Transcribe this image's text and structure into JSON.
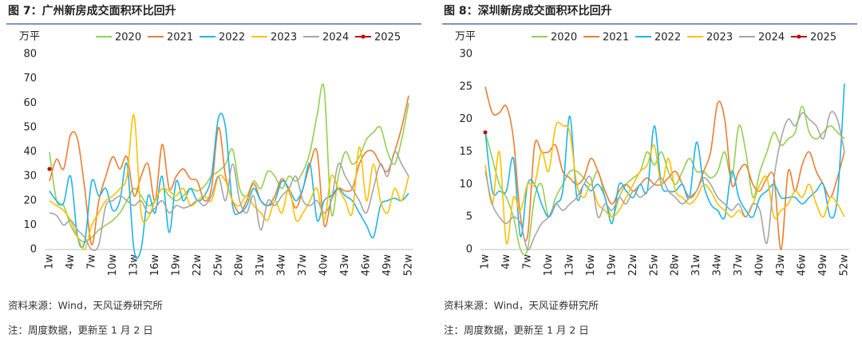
{
  "chart_data": [
    {
      "type": "line",
      "title": "图 7：广州新房成交面积环比回升",
      "y_label": "万平",
      "source": "资料来源：Wind，天风证券研究所",
      "note": "注：周度数据，更新至 1 月 2 日",
      "legend": "top",
      "grid": false,
      "categories": [
        "1w",
        null,
        null,
        "4w",
        null,
        null,
        "7w",
        null,
        null,
        "10w",
        null,
        null,
        "13w",
        null,
        null,
        "16w",
        null,
        null,
        "19w",
        null,
        null,
        "22w",
        null,
        null,
        "25w",
        null,
        null,
        "28w",
        null,
        null,
        "31w",
        null,
        null,
        "34w",
        null,
        null,
        "37w",
        null,
        null,
        "40w",
        null,
        null,
        "43w",
        null,
        null,
        "46w",
        null,
        null,
        "49w",
        null,
        null,
        "52w"
      ],
      "ylim": [
        0,
        80
      ],
      "yticks": [
        0,
        10,
        20,
        30,
        40,
        50,
        60,
        70,
        80
      ],
      "series": [
        {
          "name": "2020",
          "color": "#92d050",
          "values": [
            40,
            20,
            18,
            10,
            5,
            3,
            5,
            8,
            10,
            12,
            15,
            20,
            25,
            22,
            18,
            20,
            25,
            22,
            20,
            22,
            25,
            24,
            26,
            30,
            32,
            35,
            41,
            25,
            22,
            28,
            25,
            32,
            30,
            25,
            30,
            28,
            32,
            40,
            55,
            66,
            15,
            30,
            40,
            35,
            38,
            45,
            48,
            50,
            40,
            35,
            45,
            60
          ]
        },
        {
          "name": "2021",
          "color": "#ed7d31",
          "values": [
            28,
            37,
            33,
            47,
            45,
            25,
            2,
            20,
            30,
            38,
            33,
            38,
            22,
            30,
            35,
            20,
            43,
            25,
            30,
            33,
            29,
            28,
            20,
            25,
            50,
            30,
            20,
            15,
            20,
            27,
            20,
            18,
            22,
            29,
            24,
            17,
            25,
            35,
            40,
            10,
            20,
            25,
            24,
            25,
            35,
            40,
            40,
            35,
            32,
            40,
            50,
            63
          ]
        },
        {
          "name": "2022",
          "color": "#1fb5e6",
          "values": [
            24,
            20,
            19,
            30,
            5,
            3,
            28,
            22,
            25,
            16,
            20,
            35,
            0,
            0,
            22,
            15,
            30,
            7,
            28,
            20,
            25,
            20,
            22,
            30,
            54,
            50,
            18,
            15,
            18,
            25,
            20,
            18,
            20,
            28,
            25,
            20,
            25,
            35,
            12,
            20,
            22,
            25,
            22,
            20,
            15,
            10,
            5,
            18,
            20,
            21,
            20,
            23
          ]
        },
        {
          "name": "2023",
          "color": "#ffc000",
          "values": [
            20,
            18,
            16,
            12,
            5,
            0,
            10,
            15,
            20,
            22,
            25,
            30,
            55,
            15,
            13,
            20,
            25,
            24,
            22,
            25,
            18,
            20,
            22,
            20,
            30,
            28,
            20,
            18,
            22,
            18,
            15,
            12,
            20,
            15,
            25,
            12,
            15,
            20,
            25,
            12,
            30,
            25,
            20,
            15,
            42,
            20,
            35,
            20,
            15,
            25,
            20,
            30
          ]
        },
        {
          "name": "2024",
          "color": "#a5a5a5",
          "values": [
            15,
            14,
            10,
            12,
            8,
            5,
            0,
            2,
            18,
            20,
            22,
            20,
            18,
            20,
            15,
            17,
            20,
            15,
            18,
            17,
            18,
            20,
            18,
            22,
            30,
            20,
            35,
            20,
            15,
            22,
            8,
            20,
            18,
            22,
            25,
            30,
            20,
            18,
            20,
            15,
            20,
            35,
            30,
            25,
            20,
            15,
            25,
            35,
            30,
            40,
            35,
            30
          ]
        },
        {
          "name": "2025",
          "color": "#c00000",
          "values": [
            33,
            null,
            null,
            null,
            null,
            null,
            null,
            null,
            null,
            null,
            null,
            null,
            null,
            null,
            null,
            null,
            null,
            null,
            null,
            null,
            null,
            null,
            null,
            null,
            null,
            null,
            null,
            null,
            null,
            null,
            null,
            null,
            null,
            null,
            null,
            null,
            null,
            null,
            null,
            null,
            null,
            null,
            null,
            null,
            null,
            null,
            null,
            null,
            null,
            null,
            null,
            null
          ]
        }
      ]
    },
    {
      "type": "line",
      "title": "图 8：深圳新房成交面积环比回升",
      "y_label": "万平",
      "source": "资料来源：Wind，天风证券研究所",
      "note": "注：周度数据，更新至 1 月 2 日",
      "legend": "top",
      "grid": false,
      "categories": [
        "1w",
        null,
        null,
        "4w",
        null,
        null,
        "7w",
        null,
        null,
        "10w",
        null,
        null,
        "13w",
        null,
        null,
        "16w",
        null,
        null,
        "19w",
        null,
        null,
        "22w",
        null,
        null,
        "25w",
        null,
        null,
        "28w",
        null,
        null,
        "31w",
        null,
        null,
        "34w",
        null,
        null,
        "37w",
        null,
        null,
        "40w",
        null,
        null,
        "43w",
        null,
        null,
        "46w",
        null,
        null,
        "49w",
        null,
        null,
        "52w"
      ],
      "ylim": [
        0,
        30
      ],
      "yticks": [
        0,
        5,
        10,
        15,
        20,
        25,
        30
      ],
      "series": [
        {
          "name": "2020",
          "color": "#92d050",
          "values": [
            18,
            14,
            10,
            8,
            5,
            0,
            0,
            8,
            10,
            5,
            8,
            10,
            12,
            12,
            11,
            10,
            12,
            8,
            5,
            8,
            10,
            11,
            12,
            15,
            13,
            15,
            12,
            10,
            12,
            14,
            12,
            12,
            11,
            12,
            15,
            11,
            19,
            15,
            8,
            12,
            15,
            18,
            16,
            17,
            18,
            22,
            18,
            17,
            18,
            19,
            18,
            17
          ]
        },
        {
          "name": "2021",
          "color": "#ed7d31",
          "values": [
            25,
            21,
            21,
            22,
            17,
            5,
            2,
            16,
            15,
            15,
            16,
            12,
            11,
            10,
            11,
            14,
            12,
            9,
            7,
            9,
            10,
            9,
            10,
            11,
            10,
            10,
            11,
            12,
            10,
            8,
            9,
            12,
            15,
            22.5,
            20,
            10,
            12,
            13,
            10,
            9,
            11,
            11,
            0,
            12,
            9,
            13,
            15,
            12,
            10,
            8,
            11,
            15
          ]
        },
        {
          "name": "2022",
          "color": "#1fb5e6",
          "values": [
            18,
            9,
            9,
            9,
            14,
            2,
            10,
            10,
            7,
            5,
            7,
            9,
            20.5,
            8,
            10,
            9,
            10,
            8,
            4,
            10,
            9,
            8,
            10,
            9,
            19,
            10,
            9,
            9,
            10,
            8,
            16.5,
            10,
            7,
            6,
            5,
            12,
            8,
            6,
            5,
            8,
            9,
            10,
            8,
            8,
            8,
            7,
            8,
            9,
            10,
            5,
            8,
            25.5
          ]
        },
        {
          "name": "2023",
          "color": "#ffc000",
          "values": [
            13,
            7,
            15,
            1,
            8,
            6,
            10,
            10,
            15,
            12,
            19,
            19,
            18,
            10,
            8,
            10,
            7,
            6,
            5,
            6,
            8,
            10,
            12,
            13,
            16,
            10,
            14,
            9,
            8,
            7,
            8,
            10,
            9,
            7,
            6,
            5,
            6,
            5,
            7,
            10,
            11,
            5,
            6,
            7,
            9,
            8,
            10,
            7,
            5,
            8,
            7,
            5
          ]
        },
        {
          "name": "2024",
          "color": "#a5a5a5",
          "values": [
            12,
            7,
            5,
            4,
            5,
            4,
            0,
            2,
            4,
            5,
            7,
            6,
            7,
            8,
            10,
            11,
            5,
            7,
            6,
            8,
            7,
            9,
            8,
            9,
            10,
            11,
            9,
            8,
            7,
            8,
            9,
            11,
            10,
            8,
            7,
            6,
            7,
            5,
            7,
            6,
            1,
            11,
            17,
            20,
            19,
            21,
            20,
            19,
            17,
            21,
            20,
            15
          ]
        },
        {
          "name": "2025",
          "color": "#c00000",
          "values": [
            18,
            null,
            null,
            null,
            null,
            null,
            null,
            null,
            null,
            null,
            null,
            null,
            null,
            null,
            null,
            null,
            null,
            null,
            null,
            null,
            null,
            null,
            null,
            null,
            null,
            null,
            null,
            null,
            null,
            null,
            null,
            null,
            null,
            null,
            null,
            null,
            null,
            null,
            null,
            null,
            null,
            null,
            null,
            null,
            null,
            null,
            null,
            null,
            null,
            null,
            null,
            null
          ]
        }
      ]
    }
  ]
}
